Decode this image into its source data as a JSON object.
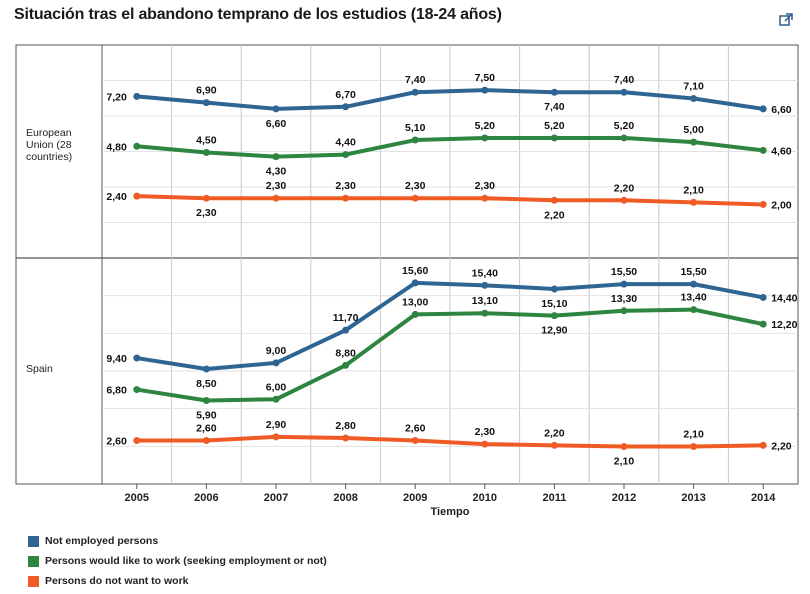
{
  "title": "Situación tras el abandono temprano de los estudios (18-24 años)",
  "icons": {
    "external": "external-link-icon"
  },
  "colors": {
    "blue": "#2f6593",
    "green": "#2e8540",
    "orange": "#ef5b25",
    "grid": "#c8c8c8",
    "axis": "#555555"
  },
  "chart_data": {
    "type": "line",
    "x": [
      "2005",
      "2006",
      "2007",
      "2008",
      "2009",
      "2010",
      "2011",
      "2012",
      "2013",
      "2014"
    ],
    "xlabel": "Tiempo",
    "legend_position": "bottom-left",
    "grid": true,
    "panels": [
      {
        "label_lines": [
          "European",
          "Union (28",
          "countries)"
        ],
        "ylim": [
          0,
          9
        ],
        "series": [
          {
            "name": "Not employed persons",
            "color": "#2f6593",
            "values": [
              7.2,
              6.9,
              6.6,
              6.7,
              7.4,
              7.5,
              7.4,
              7.4,
              7.1,
              6.6
            ],
            "labels": [
              "7,20",
              "6,90",
              "6,60",
              "6,70",
              "7,40",
              "7,50",
              "7,40",
              "7,40",
              "7,10",
              "6,60"
            ]
          },
          {
            "name": "Persons would like to work (seeking employment or not)",
            "color": "#2e8540",
            "values": [
              4.8,
              4.5,
              4.3,
              4.4,
              5.1,
              5.2,
              5.2,
              5.2,
              5.0,
              4.6
            ],
            "labels": [
              "4,80",
              "4,50",
              "4,30",
              "4,40",
              "5,10",
              "5,20",
              "5,20",
              "5,20",
              "5,00",
              "4,60"
            ]
          },
          {
            "name": "Persons do not want to work",
            "color": "#ef5b25",
            "values": [
              2.4,
              2.3,
              2.3,
              2.3,
              2.3,
              2.3,
              2.2,
              2.2,
              2.1,
              2.0
            ],
            "labels": [
              "2,40",
              "2,30",
              "2,30",
              "2,30",
              "2,30",
              "2,30",
              "2,20",
              "2,20",
              "2,10",
              "2,00"
            ]
          }
        ]
      },
      {
        "label_lines": [
          "Spain"
        ],
        "ylim": [
          0,
          16.5
        ],
        "series": [
          {
            "name": "Not employed persons",
            "color": "#2f6593",
            "values": [
              9.4,
              8.5,
              9.0,
              11.7,
              15.6,
              15.4,
              15.1,
              15.5,
              15.5,
              14.4
            ],
            "labels": [
              "9,40",
              "8,50",
              "9,00",
              "11,70",
              "15,60",
              "15,40",
              "15,10",
              "15,50",
              "15,50",
              "14,40"
            ]
          },
          {
            "name": "Persons would like to work (seeking employment or not)",
            "color": "#2e8540",
            "values": [
              6.8,
              5.9,
              6.0,
              8.8,
              13.0,
              13.1,
              12.9,
              13.3,
              13.4,
              12.2
            ],
            "labels": [
              "6,80",
              "5,90",
              "6,00",
              "8,80",
              "13,00",
              "13,10",
              "12,90",
              "13,30",
              "13,40",
              "12,20"
            ]
          },
          {
            "name": "Persons do not want to work",
            "color": "#ef5b25",
            "values": [
              2.6,
              2.6,
              2.9,
              2.8,
              2.6,
              2.3,
              2.2,
              2.1,
              2.1,
              2.2
            ],
            "labels": [
              "2,60",
              "2,60",
              "2,90",
              "2,80",
              "2,60",
              "2,30",
              "2,20",
              "2,10",
              "2,10",
              "2,20"
            ]
          }
        ]
      }
    ]
  },
  "legend": [
    {
      "label": "Not employed persons",
      "color": "#2f6593"
    },
    {
      "label": "Persons would like to work (seeking employment or not)",
      "color": "#2e8540"
    },
    {
      "label": "Persons do not want to work",
      "color": "#ef5b25"
    }
  ]
}
